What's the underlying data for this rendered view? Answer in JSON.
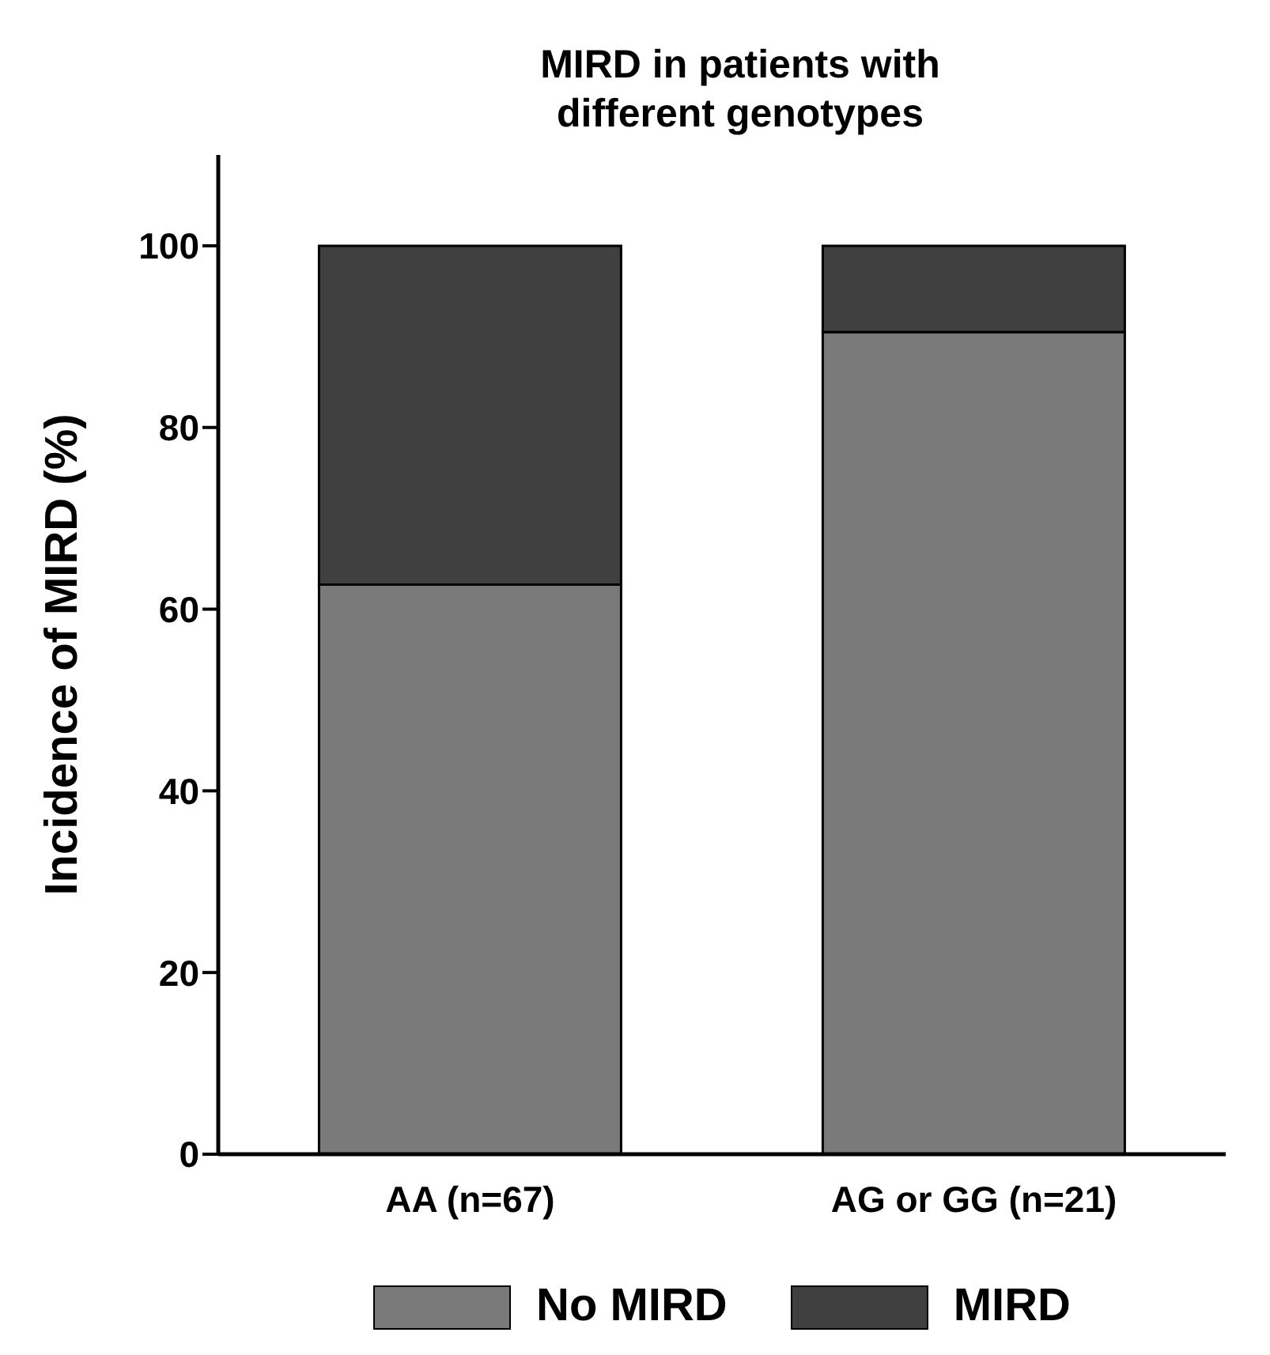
{
  "chart_data": {
    "type": "bar",
    "title": "MIRD in patients with different genotypes",
    "ylabel": "Incidence of MIRD (%)",
    "categories": [
      "AA (n=67)",
      "AG or GG (n=21)"
    ],
    "stacked": true,
    "series": [
      {
        "name": "No MIRD",
        "color": "#7a7a7a",
        "values": [
          62.7,
          90.5
        ]
      },
      {
        "name": "MIRD",
        "color": "#404040",
        "values": [
          37.3,
          9.5
        ]
      }
    ],
    "ylim": [
      0,
      110
    ],
    "yticks": [
      0,
      20,
      40,
      60,
      80,
      100
    ],
    "grid": false,
    "legend": "bottom"
  }
}
